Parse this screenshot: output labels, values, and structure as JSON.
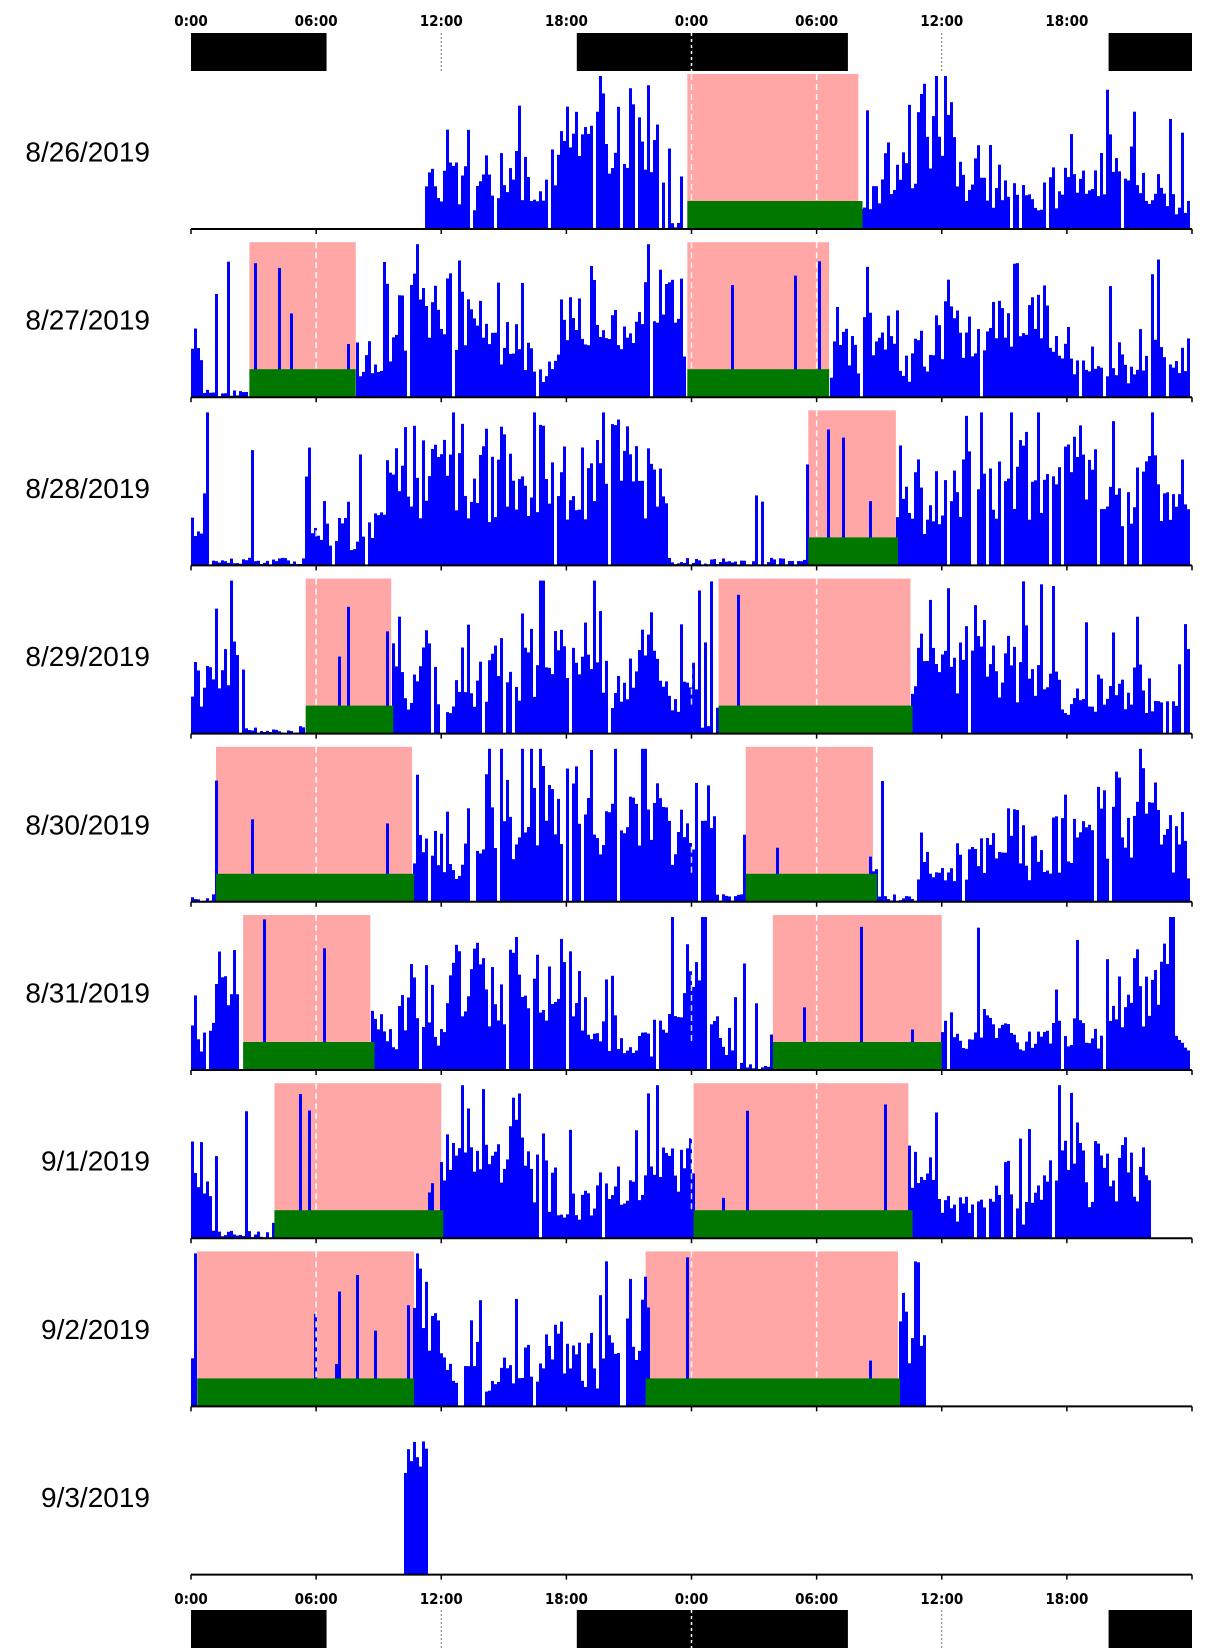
{
  "chart_data": {
    "type": "actogram",
    "title": "",
    "xlabel": "",
    "ylabel": "",
    "x_span_hours": 48,
    "x_ticks_hours": [
      0,
      6,
      12,
      18,
      24,
      30,
      36,
      42
    ],
    "x_tick_labels": [
      "0:00",
      "06:00",
      "12:00",
      "18:00",
      "0:00",
      "06:00",
      "12:00",
      "18:00"
    ],
    "dark_periods_hours": [
      [
        0,
        6.5
      ],
      [
        18.5,
        31.5
      ],
      [
        44,
        48
      ]
    ],
    "colors": {
      "activity": "#0000ff",
      "rest": "#ffa6a6",
      "sleep": "#007800",
      "dark": "#000000"
    },
    "rows": [
      {
        "date": "8/26/2019",
        "data_start": 11.2,
        "data_end": 48,
        "sleep": [
          [
            23.8,
            32.2
          ]
        ],
        "rest": [
          [
            23.8,
            32.0
          ]
        ],
        "quiet": [
          [
            22.7,
            23.7
          ]
        ]
      },
      {
        "date": "8/27/2019",
        "data_start": 0.0,
        "data_end": 48,
        "sleep": [
          [
            2.8,
            7.9
          ],
          [
            23.8,
            30.6
          ]
        ],
        "rest": [
          [
            2.8,
            7.9
          ],
          [
            23.8,
            30.6
          ]
        ],
        "quiet": [
          [
            0.6,
            2.8
          ]
        ]
      },
      {
        "date": "8/28/2019",
        "data_start": 0.0,
        "data_end": 48,
        "sleep": [
          [
            29.6,
            33.9
          ]
        ],
        "rest": [
          [
            29.6,
            33.8
          ]
        ],
        "quiet": [
          [
            0.8,
            5.5
          ],
          [
            22.9,
            29.5
          ]
        ]
      },
      {
        "date": "8/29/2019",
        "data_start": 0.0,
        "data_end": 48,
        "sleep": [
          [
            5.5,
            9.7
          ],
          [
            25.3,
            34.6
          ]
        ],
        "rest": [
          [
            5.5,
            9.6
          ],
          [
            25.3,
            34.5
          ]
        ],
        "quiet": [
          [
            2.6,
            5.4
          ],
          [
            24.5,
            25.2
          ]
        ]
      },
      {
        "date": "8/30/2019",
        "data_start": 0.0,
        "data_end": 48,
        "sleep": [
          [
            1.2,
            10.7
          ],
          [
            26.6,
            32.9
          ]
        ],
        "rest": [
          [
            1.2,
            10.6
          ],
          [
            26.6,
            32.7
          ]
        ],
        "quiet": [
          [
            0.0,
            1.1
          ],
          [
            25.2,
            26.5
          ],
          [
            33.0,
            34.8
          ]
        ]
      },
      {
        "date": "8/31/2019",
        "data_start": 0.0,
        "data_end": 48,
        "sleep": [
          [
            2.5,
            8.8
          ],
          [
            27.9,
            36.0
          ]
        ],
        "rest": [
          [
            2.5,
            8.6
          ],
          [
            27.9,
            36.0
          ]
        ],
        "quiet": [
          [
            26.2,
            27.8
          ]
        ]
      },
      {
        "date": "9/1/2019",
        "data_start": 0.0,
        "data_end": 46.1,
        "sleep": [
          [
            4.0,
            12.1
          ],
          [
            24.1,
            34.6
          ]
        ],
        "rest": [
          [
            4.0,
            12.0
          ],
          [
            24.1,
            34.4
          ]
        ],
        "quiet": [
          [
            1.0,
            3.9
          ]
        ]
      },
      {
        "date": "9/2/2019",
        "data_start": 0.0,
        "data_end": 35.2,
        "sleep": [
          [
            0.3,
            10.7
          ],
          [
            21.8,
            34.0
          ]
        ],
        "rest": [
          [
            0.3,
            10.7
          ],
          [
            21.8,
            33.9
          ]
        ],
        "quiet": []
      },
      {
        "date": "9/3/2019",
        "data_start": 10.2,
        "data_end": 11.4,
        "sleep": [],
        "rest": [],
        "quiet": []
      }
    ]
  }
}
